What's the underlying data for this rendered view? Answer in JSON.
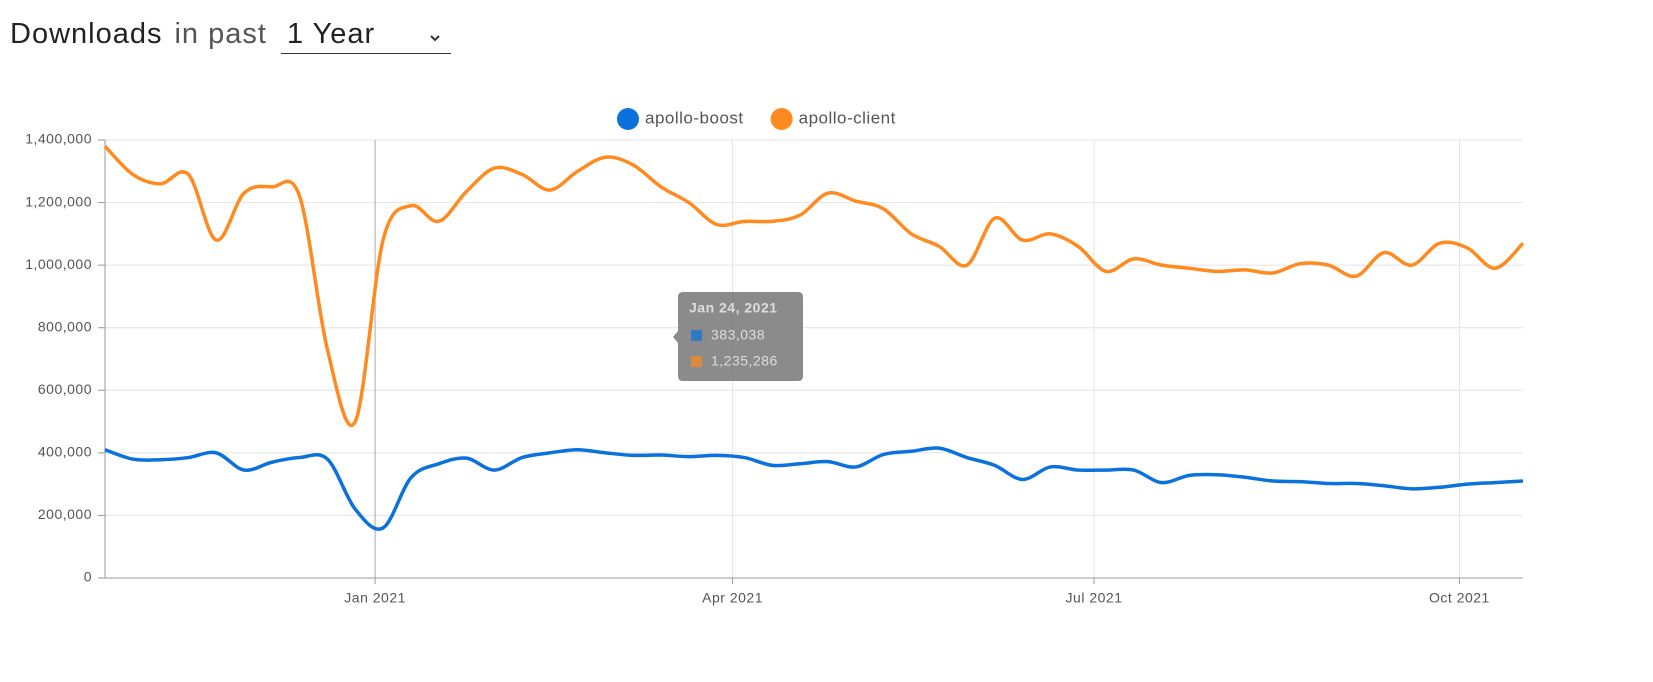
{
  "header": {
    "title": "Downloads",
    "subtitle": "in past",
    "period": "1 Year"
  },
  "chart_data": {
    "type": "line",
    "x": [
      "2020-10-25",
      "2020-11-01",
      "2020-11-08",
      "2020-11-15",
      "2020-11-22",
      "2020-11-29",
      "2020-12-06",
      "2020-12-13",
      "2020-12-20",
      "2020-12-27",
      "2021-01-03",
      "2021-01-10",
      "2021-01-17",
      "2021-01-24",
      "2021-01-31",
      "2021-02-07",
      "2021-02-14",
      "2021-02-21",
      "2021-02-28",
      "2021-03-07",
      "2021-03-14",
      "2021-03-21",
      "2021-03-28",
      "2021-04-04",
      "2021-04-11",
      "2021-04-18",
      "2021-04-25",
      "2021-05-02",
      "2021-05-09",
      "2021-05-16",
      "2021-05-23",
      "2021-05-30",
      "2021-06-06",
      "2021-06-13",
      "2021-06-20",
      "2021-06-27",
      "2021-07-04",
      "2021-07-11",
      "2021-07-18",
      "2021-07-25",
      "2021-08-01",
      "2021-08-08",
      "2021-08-15",
      "2021-08-22",
      "2021-08-29",
      "2021-09-05",
      "2021-09-12",
      "2021-09-19",
      "2021-09-26",
      "2021-10-03",
      "2021-10-10",
      "2021-10-17"
    ],
    "series": [
      {
        "name": "apollo-boost",
        "color": "#0b72db",
        "values": [
          410000,
          380000,
          378000,
          385000,
          400000,
          345000,
          370000,
          385000,
          380000,
          220000,
          160000,
          320000,
          365000,
          383038,
          345000,
          385000,
          400000,
          410000,
          400000,
          392000,
          393000,
          388000,
          392000,
          385000,
          360000,
          365000,
          372000,
          355000,
          395000,
          405000,
          415000,
          385000,
          360000,
          315000,
          355000,
          345000,
          345000,
          345000,
          305000,
          328000,
          330000,
          322000,
          310000,
          308000,
          302000,
          302000,
          295000,
          285000,
          290000,
          300000,
          305000,
          310000
        ]
      },
      {
        "name": "apollo-client",
        "color": "#ff8a1f",
        "values": [
          1380000,
          1290000,
          1260000,
          1290000,
          1080000,
          1230000,
          1250000,
          1220000,
          730000,
          500000,
          1080000,
          1190000,
          1140000,
          1235286,
          1310000,
          1290000,
          1240000,
          1300000,
          1345000,
          1320000,
          1250000,
          1200000,
          1130000,
          1140000,
          1140000,
          1160000,
          1230000,
          1205000,
          1180000,
          1100000,
          1060000,
          1000000,
          1150000,
          1080000,
          1100000,
          1060000,
          980000,
          1020000,
          1000000,
          990000,
          980000,
          985000,
          975000,
          1005000,
          1000000,
          965000,
          1040000,
          1000000,
          1070000,
          1055000,
          990000,
          1070000
        ]
      }
    ],
    "xlim": [
      "2020-10-25",
      "2021-10-17"
    ],
    "xticks": [
      {
        "value": "2021-01-01",
        "label": "Jan 2021"
      },
      {
        "value": "2021-04-01",
        "label": "Apr 2021"
      },
      {
        "value": "2021-07-01",
        "label": "Jul 2021"
      },
      {
        "value": "2021-10-01",
        "label": "Oct 2021"
      }
    ],
    "ylim": [
      0,
      1400000
    ],
    "yticks": [
      0,
      {
        "value": 200000,
        "label": "200,000"
      },
      {
        "value": 400000,
        "label": "400,000"
      },
      {
        "value": 600000,
        "label": "600,000"
      },
      {
        "value": 800000,
        "label": "800,000"
      },
      {
        "value": 1000000,
        "label": "1,000,000"
      },
      {
        "value": 1200000,
        "label": "1,200,000"
      },
      {
        "value": 1400000,
        "label": "1,400,000"
      }
    ],
    "grid": true,
    "legend": "top",
    "tooltip": {
      "title": "Jan 24, 2021",
      "items": [
        "383,038",
        "1,235,286"
      ]
    }
  }
}
